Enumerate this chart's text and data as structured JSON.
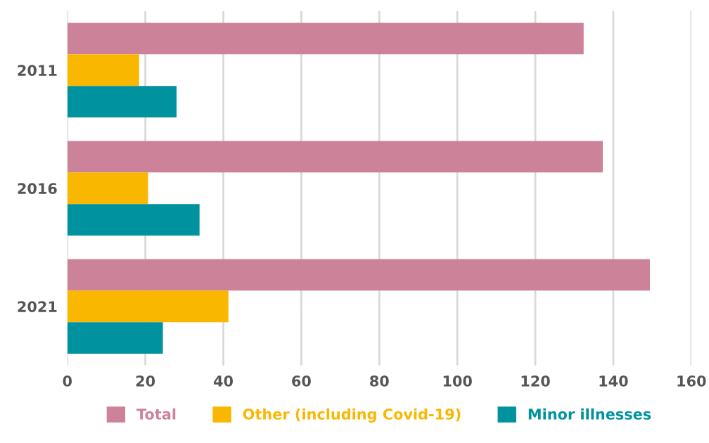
{
  "chart_data": {
    "type": "bar",
    "orientation": "horizontal",
    "categories": [
      "2011",
      "2016",
      "2021"
    ],
    "series": [
      {
        "name": "Total",
        "color": "#cc8299",
        "values": [
          132.4,
          137.3,
          149.4
        ]
      },
      {
        "name": "Other (including Covid-19)",
        "color": "#f9b700",
        "values": [
          18.4,
          20.7,
          41.3
        ]
      },
      {
        "name": "Minor illnesses",
        "color": "#00929f",
        "values": [
          28.0,
          33.9,
          24.5
        ]
      }
    ],
    "xlim": [
      0,
      160
    ],
    "xticks": [
      0,
      20,
      40,
      60,
      80,
      100,
      120,
      140,
      160
    ],
    "grid": "x",
    "legend": "bottom"
  }
}
